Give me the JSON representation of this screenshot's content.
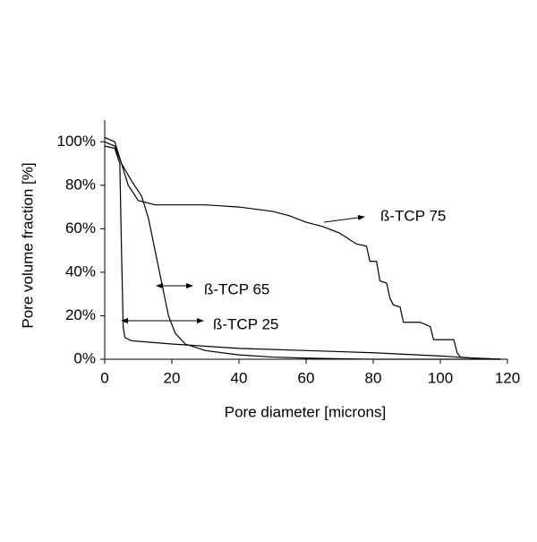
{
  "chart_data": {
    "type": "line",
    "xlabel": "Pore diameter [microns]",
    "ylabel": "Pore volume fraction [%]",
    "xlim": [
      0,
      120
    ],
    "xticks": [
      0,
      20,
      40,
      60,
      80,
      100,
      120
    ],
    "ylim": [
      0,
      110
    ],
    "yticks": [
      {
        "value": 0,
        "label": "0%"
      },
      {
        "value": 20,
        "label": "20%"
      },
      {
        "value": 40,
        "label": "40%"
      },
      {
        "value": 60,
        "label": "60%"
      },
      {
        "value": 80,
        "label": "80%"
      },
      {
        "value": 100,
        "label": "100%"
      }
    ],
    "grid": false,
    "series": [
      {
        "name": "ß-TCP 75",
        "color": "#000000",
        "x": [
          0,
          3,
          5,
          7,
          10,
          15,
          30,
          40,
          50,
          55,
          60,
          65,
          70,
          75,
          78,
          79,
          81,
          82,
          84,
          85,
          86,
          88,
          89,
          94,
          97,
          98,
          104,
          105,
          106,
          110,
          118
        ],
        "values": [
          102,
          100,
          90,
          80,
          73,
          71,
          71,
          70,
          68,
          66,
          63,
          61,
          58,
          53,
          52,
          45,
          45,
          36,
          35,
          28,
          25,
          24,
          17,
          17,
          15,
          9,
          9,
          3,
          1,
          0.5,
          0
        ]
      },
      {
        "name": "ß-TCP 65",
        "color": "#000000",
        "x": [
          0,
          3,
          5,
          8,
          11,
          13,
          15,
          17,
          19,
          21,
          24,
          30,
          40,
          50,
          60,
          80,
          118
        ],
        "values": [
          100,
          98,
          90,
          82,
          75,
          65,
          50,
          35,
          20,
          12,
          7,
          4,
          2,
          1,
          0.5,
          0,
          0
        ]
      },
      {
        "name": "ß-TCP 25",
        "color": "#000000",
        "x": [
          0,
          3,
          4.5,
          5,
          5.5,
          6,
          8,
          20,
          40,
          60,
          80,
          100,
          110,
          118
        ],
        "values": [
          98,
          97,
          90,
          50,
          15,
          10,
          8.5,
          7,
          5,
          4,
          3,
          1.5,
          0.5,
          0
        ]
      }
    ]
  }
}
